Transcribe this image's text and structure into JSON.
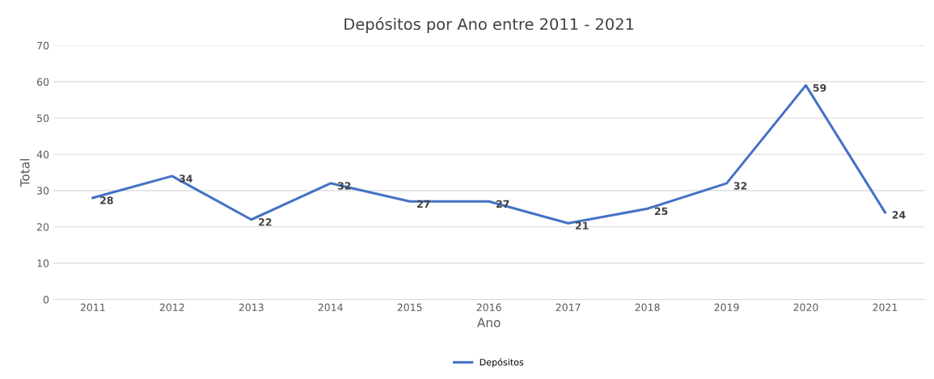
{
  "chart_data": {
    "type": "line",
    "title": "Depósitos por Ano entre 2011 - 2021",
    "xlabel": "Ano",
    "ylabel": "Total",
    "categories": [
      "2011",
      "2012",
      "2013",
      "2014",
      "2015",
      "2016",
      "2017",
      "2018",
      "2019",
      "2020",
      "2021"
    ],
    "series": [
      {
        "name": "Depósitos",
        "color": "#4472c4",
        "values": [
          28,
          34,
          22,
          32,
          27,
          27,
          21,
          25,
          32,
          59,
          24
        ]
      }
    ],
    "ylim": [
      0,
      70
    ],
    "yticks": [
      0,
      10,
      20,
      30,
      40,
      50,
      60,
      70
    ],
    "grid": "y",
    "legend": "bottom",
    "data_labels": true,
    "marker": "none",
    "line_style": "solid"
  }
}
